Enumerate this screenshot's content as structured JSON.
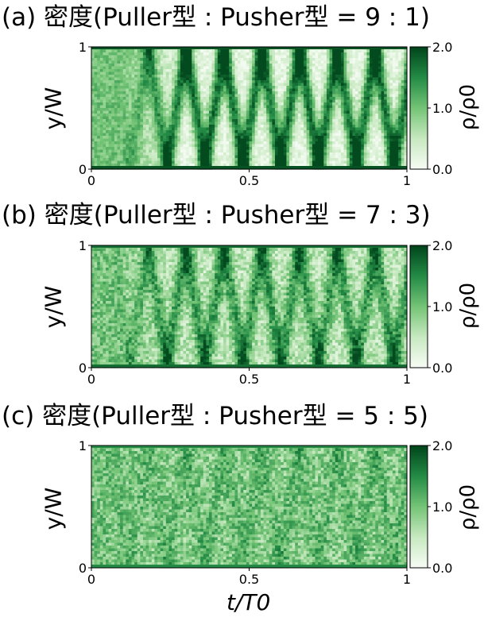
{
  "chart_data": [
    {
      "type": "heatmap",
      "panel_label": "(a)",
      "title": "(a) 密度(Puller型 : Pusher型 = 9 : 1)",
      "ylabel": "y/W",
      "colorbar_label": "ρ/ρ0",
      "xlim": [
        0,
        1
      ],
      "ylim": [
        0,
        1
      ],
      "clim": [
        0.0,
        2.0
      ],
      "x_ticks": [
        "0",
        "0.5",
        "1"
      ],
      "y_ticks": [
        "0",
        "1"
      ],
      "colorbar_ticks": [
        "0.0",
        "1.0",
        "2.0"
      ],
      "colormap": "Greens",
      "pattern": {
        "bands_start": 0.08,
        "period_growth": 0.12,
        "dense_start": 0.22,
        "contrast": 1.25,
        "noise": 0.12,
        "boundary_density": 1.9
      }
    },
    {
      "type": "heatmap",
      "panel_label": "(b)",
      "title": "(b) 密度(Puller型 : Pusher型 = 7 : 3)",
      "ylabel": "y/W",
      "colorbar_label": "ρ/ρ0",
      "xlim": [
        0,
        1
      ],
      "ylim": [
        0,
        1
      ],
      "clim": [
        0.0,
        2.0
      ],
      "x_ticks": [
        "0",
        "0.5",
        "1"
      ],
      "y_ticks": [
        "0",
        "1"
      ],
      "colorbar_ticks": [
        "0.0",
        "1.0",
        "2.0"
      ],
      "colormap": "Greens",
      "pattern": {
        "bands_start": 0.05,
        "period_growth": 0.12,
        "dense_start": 0.2,
        "contrast": 0.7,
        "noise": 0.18,
        "boundary_density": 1.7
      }
    },
    {
      "type": "heatmap",
      "panel_label": "(c)",
      "title": "(c) 密度(Puller型 : Pusher型 = 5 : 5)",
      "ylabel": "y/W",
      "colorbar_label": "ρ/ρ0",
      "xlim": [
        0,
        1
      ],
      "ylim": [
        0,
        1
      ],
      "clim": [
        0.0,
        2.0
      ],
      "x_ticks": [
        "0",
        "0.5",
        "1"
      ],
      "y_ticks": [
        "0",
        "1"
      ],
      "colorbar_ticks": [
        "0.0",
        "1.0",
        "2.0"
      ],
      "colormap": "Greens",
      "pattern": {
        "bands_start": 0.0,
        "period_growth": 0.12,
        "dense_start": 0.2,
        "contrast": 0.18,
        "noise": 0.2,
        "boundary_density": 1.5
      }
    }
  ],
  "shared_xlabel": "t/T0",
  "colormap_colors": [
    "#f7fcf5",
    "#c7e9c0",
    "#74c476",
    "#238b45",
    "#00441b"
  ]
}
